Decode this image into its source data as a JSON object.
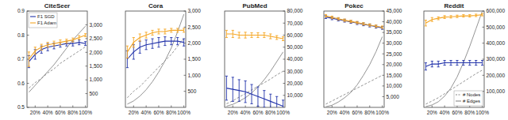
{
  "chart_data": [
    {
      "type": "line",
      "title": "CiteSeer",
      "x": [
        10,
        20,
        30,
        40,
        50,
        60,
        70,
        80,
        90,
        100
      ],
      "xlim": [
        7,
        103
      ],
      "xticks": [
        {
          "value": 20,
          "label": "20%"
        },
        {
          "value": 40,
          "label": "40%"
        },
        {
          "value": 60,
          "label": "60%"
        },
        {
          "value": 80,
          "label": "80%"
        },
        {
          "value": 100,
          "label": "100%"
        }
      ],
      "ylim": [
        0.5,
        0.9
      ],
      "yticks": [
        0.5,
        0.6,
        0.7,
        0.8,
        0.9
      ],
      "y2lim": [
        0,
        3500
      ],
      "y2ticks": [
        500,
        {
          "value": 1000,
          "label": "1,000"
        },
        {
          "value": 1500,
          "label": "1,500"
        },
        {
          "value": 2000,
          "label": "2,000"
        },
        {
          "value": 2500,
          "label": "2,500"
        },
        {
          "value": 3000,
          "label": "3,000"
        }
      ],
      "legend": "upper left",
      "series": [
        {
          "name": "F1 SGD",
          "color": "#2233aa",
          "line_style": "solid",
          "values": [
            0.69,
            0.72,
            0.74,
            0.75,
            0.755,
            0.76,
            0.765,
            0.765,
            0.77,
            0.765
          ],
          "errors": [
            0.025,
            0.02,
            0.015,
            0.015,
            0.012,
            0.01,
            0.01,
            0.01,
            0.01,
            0.008
          ]
        },
        {
          "name": "F1 Adam",
          "color": "#f5a623",
          "line_style": "solid",
          "values": [
            0.7,
            0.735,
            0.75,
            0.76,
            0.765,
            0.77,
            0.775,
            0.78,
            0.79,
            0.8
          ],
          "errors": [
            0.03,
            0.015,
            0.012,
            0.01,
            0.01,
            0.01,
            0.008,
            0.008,
            0.008,
            0.006
          ]
        },
        {
          "name": "# Nodes",
          "color": "#888888",
          "line_style": "dashed",
          "axis": "y2",
          "values": [
            700,
            900,
            1050,
            1250,
            1400,
            1600,
            1750,
            1900,
            2050,
            2200
          ]
        },
        {
          "name": "# Edges",
          "color": "#888888",
          "line_style": "solid",
          "axis": "y2",
          "values": [
            550,
            800,
            1050,
            1300,
            1550,
            1850,
            2150,
            2450,
            2700,
            2950
          ]
        }
      ]
    },
    {
      "type": "line",
      "title": "Cora",
      "x": [
        10,
        20,
        30,
        40,
        50,
        60,
        70,
        80,
        90,
        100
      ],
      "xlim": [
        7,
        103
      ],
      "xticks": [
        {
          "value": 20,
          "label": "20%"
        },
        {
          "value": 40,
          "label": "40%"
        },
        {
          "value": 60,
          "label": "60%"
        },
        {
          "value": 80,
          "label": "80%"
        },
        {
          "value": 100,
          "label": "100%"
        }
      ],
      "ylim": [
        0.5,
        0.9
      ],
      "y2lim": [
        0,
        3000
      ],
      "y2ticks": [
        500,
        {
          "value": 1000,
          "label": "1,000"
        },
        {
          "value": 1500,
          "label": "1,500"
        },
        {
          "value": 2000,
          "label": "2,000"
        },
        {
          "value": 2500,
          "label": "2,500"
        },
        {
          "value": 3000,
          "label": "3,000"
        }
      ],
      "series": [
        {
          "name": "F1 SGD",
          "color": "#2233aa",
          "line_style": "solid",
          "values": [
            0.7,
            0.73,
            0.75,
            0.76,
            0.765,
            0.77,
            0.775,
            0.775,
            0.775,
            0.77
          ],
          "errors": [
            0.035,
            0.03,
            0.025,
            0.02,
            0.02,
            0.02,
            0.018,
            0.015,
            0.015,
            0.015
          ]
        },
        {
          "name": "F1 Adam",
          "color": "#f5a623",
          "line_style": "solid",
          "values": [
            0.73,
            0.77,
            0.79,
            0.8,
            0.81,
            0.815,
            0.815,
            0.82,
            0.82,
            0.82
          ],
          "errors": [
            0.025,
            0.02,
            0.015,
            0.012,
            0.01,
            0.01,
            0.01,
            0.008,
            0.008,
            0.008
          ]
        },
        {
          "name": "# Nodes",
          "color": "#888888",
          "line_style": "dashed",
          "axis": "y2",
          "values": [
            300,
            500,
            650,
            850,
            1050,
            1250,
            1450,
            1650,
            1900,
            2150
          ]
        },
        {
          "name": "# Edges",
          "color": "#888888",
          "line_style": "solid",
          "axis": "y2",
          "values": [
            100,
            200,
            350,
            550,
            800,
            1100,
            1450,
            1850,
            2350,
            2900
          ]
        }
      ]
    },
    {
      "type": "line",
      "title": "PubMed",
      "x": [
        10,
        20,
        30,
        40,
        50,
        60,
        70,
        80,
        90,
        100
      ],
      "xlim": [
        7,
        103
      ],
      "xticks": [
        {
          "value": 20,
          "label": "20%"
        },
        {
          "value": 40,
          "label": "40%"
        },
        {
          "value": 60,
          "label": "60%"
        },
        {
          "value": 80,
          "label": "80%"
        },
        {
          "value": 100,
          "label": "100%"
        }
      ],
      "ylim": [
        0.5,
        0.9
      ],
      "y2lim": [
        0,
        80000
      ],
      "y2ticks": [
        {
          "value": 10000,
          "label": "10,000"
        },
        {
          "value": 20000,
          "label": "20,000"
        },
        {
          "value": 30000,
          "label": "30,000"
        },
        {
          "value": 40000,
          "label": "40,000"
        },
        {
          "value": 50000,
          "label": "50,000"
        },
        {
          "value": 60000,
          "label": "60,000"
        },
        {
          "value": 70000,
          "label": "70,000"
        },
        {
          "value": 80000,
          "label": "80,000"
        }
      ],
      "series": [
        {
          "name": "F1 SGD",
          "color": "#2233aa",
          "line_style": "solid",
          "values": [
            0.58,
            0.575,
            0.57,
            0.565,
            0.555,
            0.545,
            0.535,
            0.525,
            0.515,
            0.505
          ],
          "errors": [
            0.05,
            0.05,
            0.045,
            0.045,
            0.04,
            0.04,
            0.035,
            0.03,
            0.03,
            0.025
          ]
        },
        {
          "name": "F1 Adam",
          "color": "#f5a623",
          "line_style": "solid",
          "values": [
            0.805,
            0.805,
            0.8,
            0.8,
            0.8,
            0.8,
            0.8,
            0.795,
            0.79,
            0.785
          ],
          "errors": [
            0.015,
            0.015,
            0.012,
            0.012,
            0.01,
            0.01,
            0.01,
            0.01,
            0.008,
            0.008
          ]
        },
        {
          "name": "# Nodes",
          "color": "#888888",
          "line_style": "dashed",
          "axis": "y2",
          "values": [
            3000,
            5500,
            8500,
            11500,
            14500,
            17500,
            20500,
            23500,
            27000,
            30000
          ]
        },
        {
          "name": "# Edges",
          "color": "#888888",
          "line_style": "solid",
          "axis": "y2",
          "values": [
            1000,
            2500,
            5000,
            8000,
            12000,
            17000,
            23000,
            30000,
            38000,
            46000
          ]
        }
      ]
    },
    {
      "type": "line",
      "title": "Pokec",
      "x": [
        10,
        20,
        30,
        40,
        50,
        60,
        70,
        80,
        90,
        100
      ],
      "xlim": [
        7,
        103
      ],
      "xticks": [
        {
          "value": 20,
          "label": "20%"
        },
        {
          "value": 40,
          "label": "40%"
        },
        {
          "value": 60,
          "label": "60%"
        },
        {
          "value": 80,
          "label": "80%"
        },
        {
          "value": 100,
          "label": "100%"
        }
      ],
      "ylim": [
        0.5,
        0.9
      ],
      "y2lim": [
        0,
        45000
      ],
      "y2ticks": [
        {
          "value": 5000,
          "label": "5,000"
        },
        {
          "value": 10000,
          "label": "10,000"
        },
        {
          "value": 15000,
          "label": "15,000"
        },
        {
          "value": 20000,
          "label": "20,000"
        },
        {
          "value": 25000,
          "label": "25,000"
        },
        {
          "value": 30000,
          "label": "30,000"
        },
        {
          "value": 35000,
          "label": "35,000"
        },
        {
          "value": 40000,
          "label": "40,000"
        },
        {
          "value": 45000,
          "label": "45,000"
        }
      ],
      "series": [
        {
          "name": "F1 SGD",
          "color": "#2233aa",
          "line_style": "solid",
          "values": [
            0.875,
            0.87,
            0.865,
            0.86,
            0.855,
            0.85,
            0.845,
            0.84,
            0.835,
            0.83
          ],
          "errors": [
            0.006,
            0.006,
            0.006,
            0.006,
            0.006,
            0.006,
            0.006,
            0.006,
            0.006,
            0.006
          ]
        },
        {
          "name": "F1 Adam",
          "color": "#f5a623",
          "line_style": "solid",
          "values": [
            0.88,
            0.874,
            0.868,
            0.862,
            0.857,
            0.852,
            0.847,
            0.842,
            0.837,
            0.833
          ],
          "errors": [
            0.005,
            0.005,
            0.005,
            0.005,
            0.005,
            0.005,
            0.005,
            0.005,
            0.005,
            0.005
          ]
        },
        {
          "name": "# Nodes",
          "color": "#888888",
          "line_style": "dashed",
          "axis": "y2",
          "values": [
            1500,
            3000,
            4500,
            6000,
            7500,
            9000,
            10500,
            12000,
            13500,
            15000
          ]
        },
        {
          "name": "# Edges",
          "color": "#888888",
          "line_style": "solid",
          "axis": "y2",
          "values": [
            300,
            1000,
            2500,
            4500,
            7000,
            10500,
            15000,
            20000,
            26000,
            33000
          ]
        }
      ]
    },
    {
      "type": "line",
      "title": "Reddit",
      "x": [
        10,
        20,
        30,
        40,
        50,
        60,
        70,
        80,
        90,
        100
      ],
      "xlim": [
        7,
        103
      ],
      "xticks": [
        {
          "value": 20,
          "label": "20%"
        },
        {
          "value": 40,
          "label": "40%"
        },
        {
          "value": 60,
          "label": "60%"
        },
        {
          "value": 80,
          "label": "80%"
        },
        {
          "value": 100,
          "label": "100%"
        }
      ],
      "ylim": [
        0.5,
        0.9
      ],
      "y2lim": [
        0,
        600000
      ],
      "y2ticks": [
        {
          "value": 100000,
          "label": "100,000"
        },
        {
          "value": 200000,
          "label": "200,000"
        },
        {
          "value": 300000,
          "label": "300,000"
        },
        {
          "value": 400000,
          "label": "400,000"
        },
        {
          "value": 500000,
          "label": "500,000"
        },
        {
          "value": 600000,
          "label": "600,000"
        }
      ],
      "legend": "lower right",
      "series": [
        {
          "name": "F1 SGD",
          "color": "#2233aa",
          "line_style": "solid",
          "values": [
            0.67,
            0.68,
            0.68,
            0.685,
            0.685,
            0.685,
            0.685,
            0.685,
            0.685,
            0.685
          ],
          "errors": [
            0.015,
            0.012,
            0.012,
            0.01,
            0.01,
            0.01,
            0.01,
            0.01,
            0.01,
            0.01
          ]
        },
        {
          "name": "F1 Adam",
          "color": "#f5a623",
          "line_style": "solid",
          "values": [
            0.85,
            0.865,
            0.87,
            0.875,
            0.876,
            0.878,
            0.88,
            0.88,
            0.882,
            0.885
          ],
          "errors": [
            0.012,
            0.008,
            0.006,
            0.006,
            0.005,
            0.005,
            0.005,
            0.005,
            0.005,
            0.005
          ]
        },
        {
          "name": "# Nodes",
          "color": "#888888",
          "line_style": "dashed",
          "axis": "y2",
          "values": [
            20000,
            40000,
            60000,
            85000,
            110000,
            135000,
            160000,
            185000,
            210000,
            232000
          ]
        },
        {
          "name": "# Edges",
          "color": "#888888",
          "line_style": "solid",
          "axis": "y2",
          "values": [
            5000,
            15000,
            35000,
            70000,
            120000,
            190000,
            280000,
            380000,
            490000,
            600000
          ]
        }
      ]
    }
  ]
}
